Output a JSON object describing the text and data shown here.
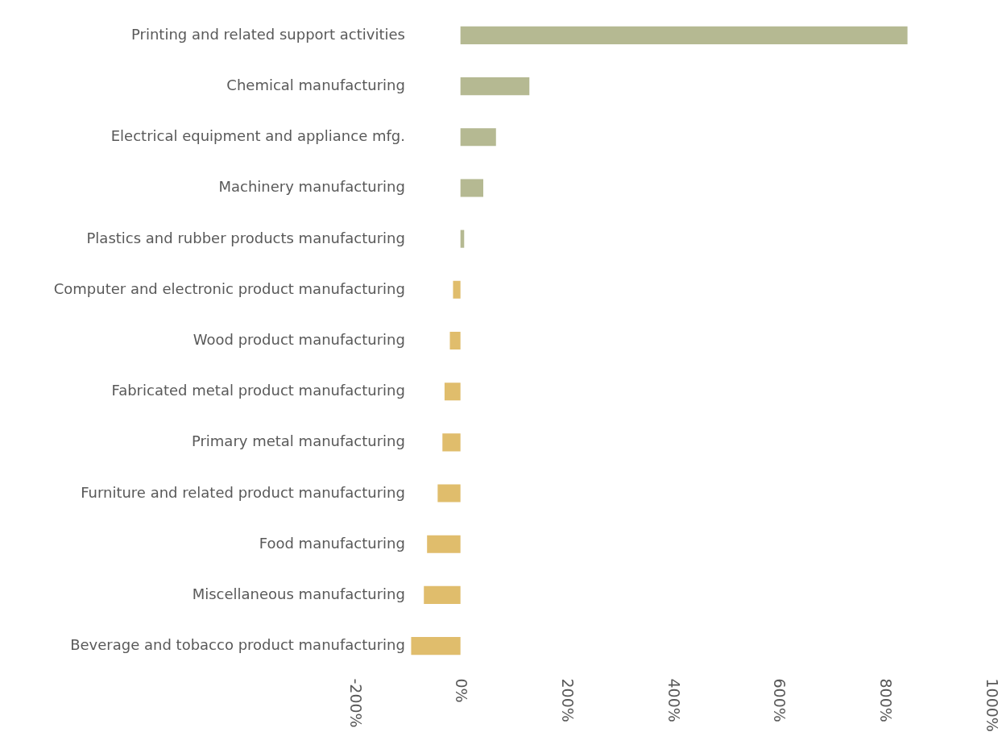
{
  "chart_data": {
    "type": "bar",
    "orientation": "horizontal",
    "categories": [
      "Printing and related support activities",
      "Chemical manufacturing",
      "Electrical equipment and appliance mfg.",
      "Machinery manufacturing",
      "Plastics and rubber products manufacturing",
      "Computer and electronic product manufacturing",
      "Wood product manufacturing",
      "Fabricated metal product manufacturing",
      "Primary metal manufacturing",
      "Furniture and related product manufacturing",
      "Food manufacturing",
      "Miscellaneous manufacturing",
      "Beverage and tobacco product manufacturing"
    ],
    "values": [
      843,
      130,
      67,
      43,
      7,
      -14,
      -20,
      -30,
      -34,
      -43,
      -63,
      -69,
      -93
    ],
    "colors": [
      "#b5b992",
      "#b5b992",
      "#b5b992",
      "#b5b992",
      "#b5b992",
      "#e0bd6c",
      "#e0bd6c",
      "#e0bd6c",
      "#e0bd6c",
      "#e0bd6c",
      "#e0bd6c",
      "#e0bd6c",
      "#e0bd6c"
    ],
    "xlim": [
      -200,
      1000
    ],
    "xticks": [
      {
        "value": -200,
        "label": "-200%"
      },
      {
        "value": 0,
        "label": "0%"
      },
      {
        "value": 200,
        "label": "200%"
      },
      {
        "value": 400,
        "label": "400%"
      },
      {
        "value": 600,
        "label": "600%"
      },
      {
        "value": 800,
        "label": "800%"
      },
      {
        "value": 1000,
        "label": "1000%"
      }
    ],
    "grid": false
  }
}
